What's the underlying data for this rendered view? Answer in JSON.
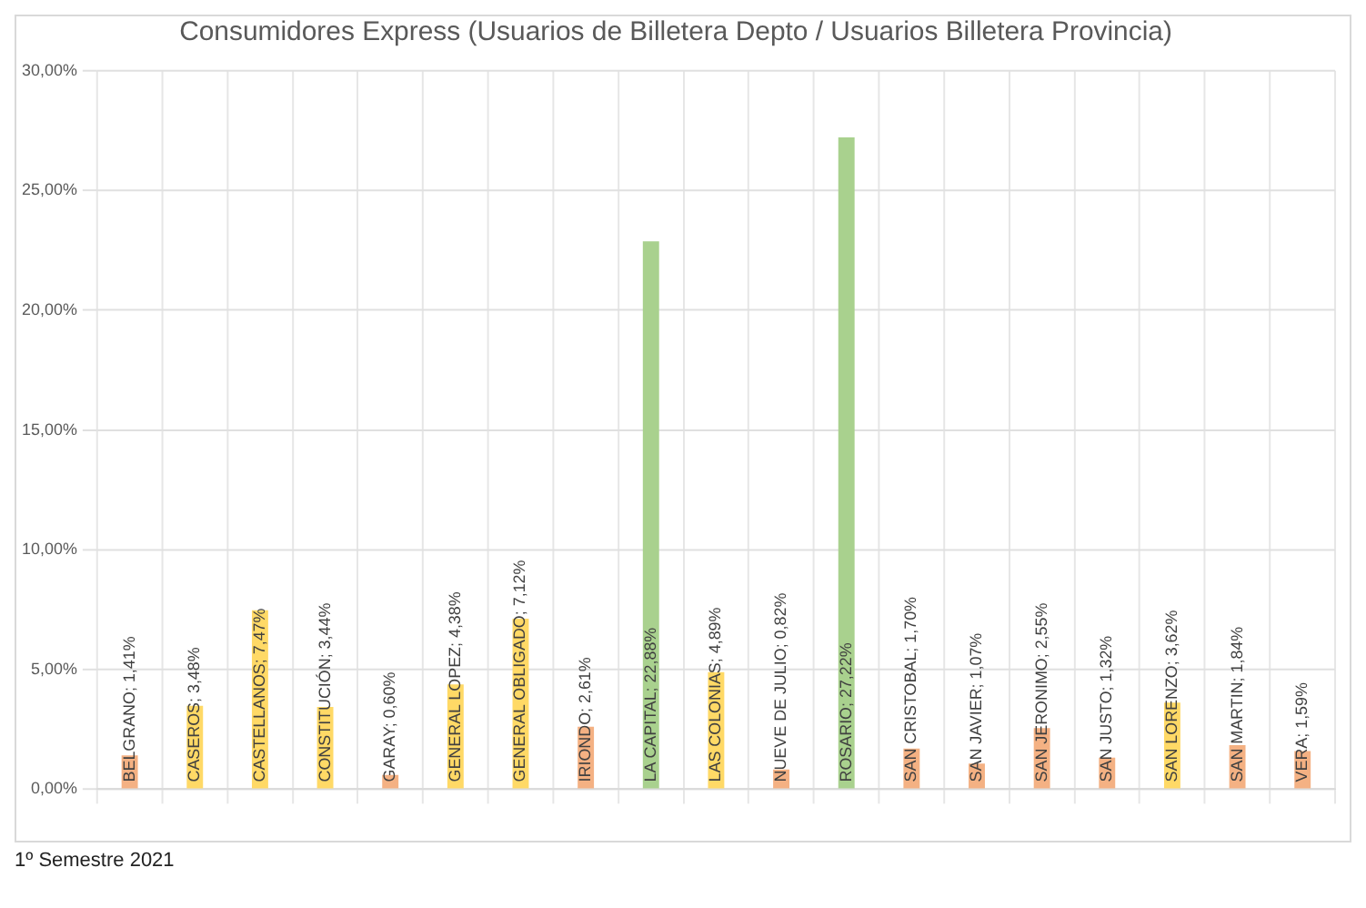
{
  "chart_data": {
    "type": "bar",
    "title": "Consumidores Express (Usuarios de Billetera Depto / Usuarios Billetera Provincia)",
    "categories": [
      null,
      null,
      null,
      null,
      null,
      null,
      null,
      null,
      null,
      null,
      null,
      null,
      null,
      null,
      null,
      null,
      null,
      null,
      null
    ],
    "values": [
      1.41,
      3.48,
      7.47,
      3.44,
      0.6,
      4.38,
      7.12,
      2.61,
      22.88,
      4.89,
      0.82,
      27.22,
      1.7,
      1.07,
      2.55,
      1.32,
      3.62,
      1.84,
      1.59
    ],
    "colors": [
      "#f4b183",
      "#ffd966",
      "#ffd966",
      "#ffd966",
      "#f4b183",
      "#ffd966",
      "#ffd966",
      "#f4b183",
      "#a9d18e",
      "#ffd966",
      "#f4b183",
      "#a9d18e",
      "#f4b183",
      "#f4b183",
      "#f4b183",
      "#f4b183",
      "#ffd966",
      "#f4b183",
      "#f4b183"
    ],
    "value_labels": [
      "BELGRANO; 1,41%",
      "CASEROS; 3,48%",
      "CASTELLANOS; 7,47%",
      "CONSTITUCIÓN; 3,44%",
      "GARAY; 0,60%",
      "GENERAL LOPEZ; 4,38%",
      "GENERAL OBLIGADO; 7,12%",
      "IRIONDO; 2,61%",
      "LA CAPITAL; 22,88%",
      "LAS COLONIAS; 4,89%",
      "NUEVE DE JULIO; 0,82%",
      "ROSARIO; 27,22%",
      "SAN CRISTOBAL; 1,70%",
      "SAN JAVIER; 1,07%",
      "SAN JERONIMO; 2,55%",
      "SAN JUSTO; 1,32%",
      "SAN LORENZO; 3,62%",
      "SAN MARTIN; 1,84%",
      "VERA; 1,59%"
    ],
    "ylim": [
      0,
      30
    ],
    "yticks": [
      {
        "value": 0,
        "label": "0,00%"
      },
      {
        "value": 5,
        "label": "5,00%"
      },
      {
        "value": 10,
        "label": "10,00%"
      },
      {
        "value": 15,
        "label": "15,00%"
      },
      {
        "value": 20,
        "label": "20,00%"
      },
      {
        "value": 25,
        "label": "25,00%"
      },
      {
        "value": 30,
        "label": "30,00%"
      }
    ],
    "grid": true,
    "legend": false,
    "annotations": [
      "1º Semestre 2021"
    ]
  }
}
